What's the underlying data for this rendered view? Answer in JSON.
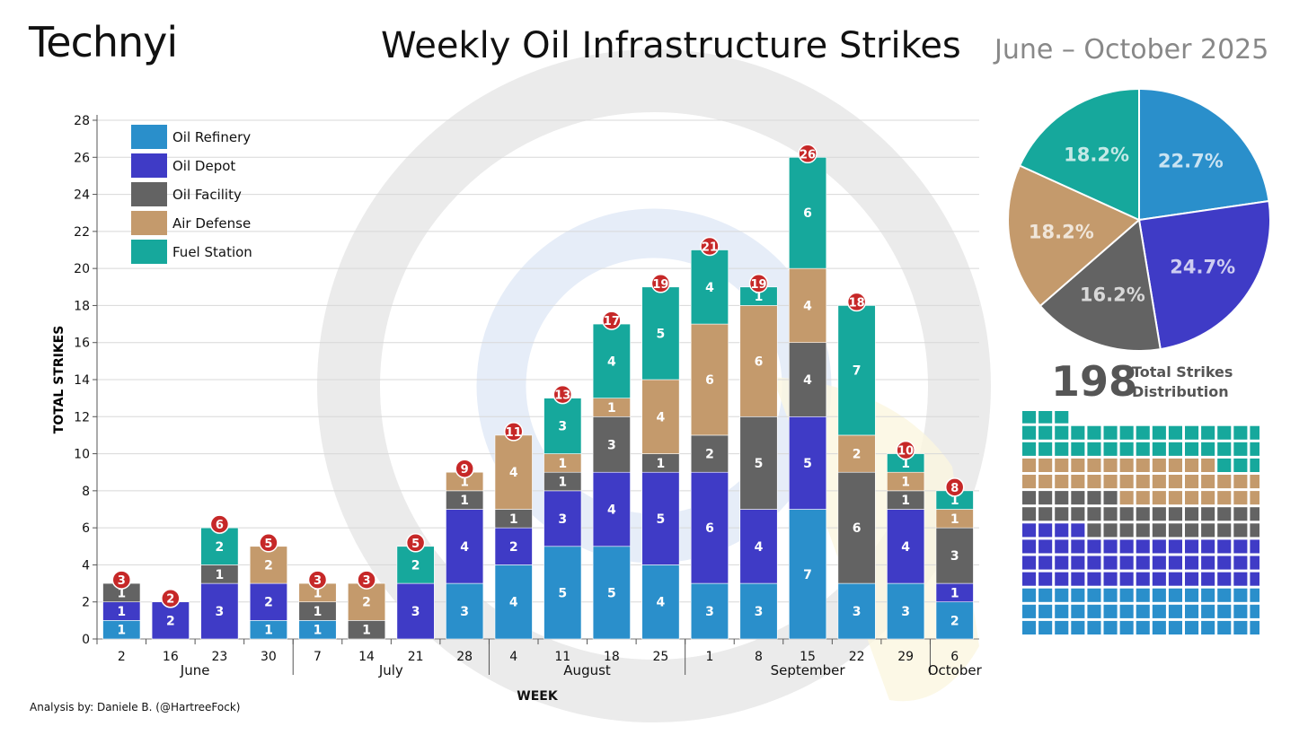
{
  "header": {
    "logo": "Technyi",
    "title": "Weekly Oil Infrastructure Strikes",
    "subtitle": "June – October 2025"
  },
  "colors": {
    "oil_refinery": "#2a8fcb",
    "oil_depot": "#3f3bc6",
    "oil_facility": "#636363",
    "air_defense": "#c49a6c",
    "fuel_station": "#16a89c",
    "total_badge": "#c62828"
  },
  "chart_data": {
    "type": "bar",
    "stacked": true,
    "ylabel": "TOTAL STRIKES",
    "xlabel": "WEEK",
    "ylim": [
      0,
      28
    ],
    "yticks": [
      0,
      2,
      4,
      6,
      8,
      10,
      12,
      14,
      16,
      18,
      20,
      22,
      24,
      26,
      28
    ],
    "categories": [
      "2",
      "16",
      "23",
      "30",
      "7",
      "14",
      "21",
      "28",
      "4",
      "11",
      "18",
      "25",
      "1",
      "8",
      "15",
      "22",
      "29",
      "6"
    ],
    "months": [
      {
        "name": "June",
        "from": 0,
        "to": 3
      },
      {
        "name": "July",
        "from": 4,
        "to": 7
      },
      {
        "name": "August",
        "from": 8,
        "to": 11
      },
      {
        "name": "September",
        "from": 12,
        "to": 16
      },
      {
        "name": "October",
        "from": 17,
        "to": 17
      }
    ],
    "series": [
      {
        "name": "Oil Refinery",
        "key": "oil_refinery",
        "values": [
          1,
          0,
          0,
          1,
          1,
          0,
          0,
          3,
          4,
          5,
          5,
          4,
          3,
          3,
          7,
          3,
          3,
          2
        ]
      },
      {
        "name": "Oil Depot",
        "key": "oil_depot",
        "values": [
          1,
          2,
          3,
          2,
          0,
          0,
          3,
          4,
          2,
          3,
          4,
          5,
          6,
          4,
          5,
          0,
          4,
          1
        ]
      },
      {
        "name": "Oil Facility",
        "key": "oil_facility",
        "values": [
          1,
          0,
          1,
          0,
          1,
          1,
          0,
          1,
          1,
          1,
          3,
          1,
          2,
          5,
          4,
          6,
          1,
          3
        ]
      },
      {
        "name": "Air Defense",
        "key": "air_defense",
        "values": [
          0,
          0,
          0,
          2,
          1,
          2,
          0,
          1,
          4,
          1,
          1,
          4,
          6,
          6,
          4,
          2,
          1,
          1
        ]
      },
      {
        "name": "Fuel Station",
        "key": "fuel_station",
        "values": [
          0,
          0,
          2,
          0,
          0,
          0,
          2,
          0,
          0,
          3,
          4,
          5,
          4,
          1,
          6,
          7,
          1,
          1
        ]
      }
    ],
    "totals": [
      3,
      2,
      6,
      5,
      3,
      3,
      5,
      9,
      11,
      13,
      17,
      19,
      21,
      19,
      26,
      18,
      10,
      8
    ],
    "pie": {
      "slices": [
        {
          "name": "Oil Refinery",
          "key": "oil_refinery",
          "pct": 22.7,
          "label": "22.7%"
        },
        {
          "name": "Oil Depot",
          "key": "oil_depot",
          "pct": 24.7,
          "label": "24.7%"
        },
        {
          "name": "Oil Facility",
          "key": "oil_facility",
          "pct": 16.2,
          "label": "16.2%"
        },
        {
          "name": "Air Defense",
          "key": "air_defense",
          "pct": 18.2,
          "label": "18.2%"
        },
        {
          "name": "Fuel Station",
          "key": "fuel_station",
          "pct": 18.2,
          "label": "18.2%"
        }
      ]
    },
    "waffle": {
      "columns": 15,
      "counts": [
        {
          "key": "oil_refinery",
          "count": 45
        },
        {
          "key": "oil_depot",
          "count": 49
        },
        {
          "key": "oil_facility",
          "count": 32
        },
        {
          "key": "air_defense",
          "count": 36
        },
        {
          "key": "fuel_station",
          "count": 36
        }
      ]
    }
  },
  "summary": {
    "total": "198",
    "label_line1": "Total Strikes",
    "label_line2": "Distribution"
  },
  "footer": {
    "credit": "Analysis by: Daniele B. (@HartreeFock)"
  }
}
